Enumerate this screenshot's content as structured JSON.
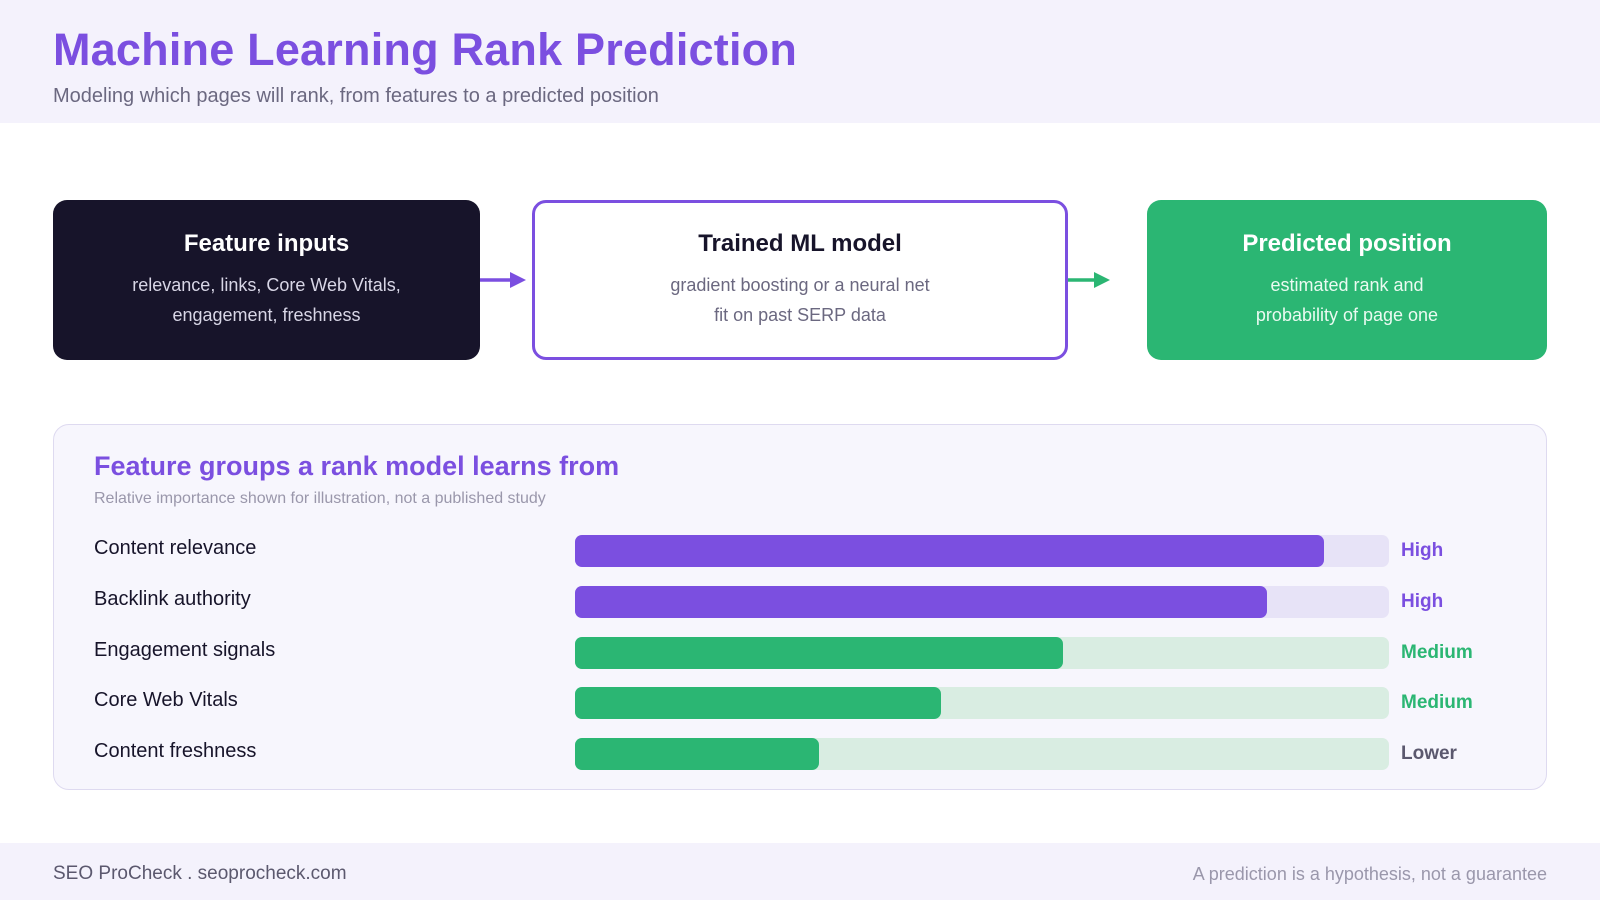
{
  "header": {
    "title": "Machine Learning Rank Prediction",
    "subtitle": "Modeling which pages will rank, from features to a predicted position"
  },
  "flow": {
    "inputs": {
      "title": "Feature inputs",
      "description": "relevance, links, Core Web Vitals, engagement, freshness"
    },
    "model": {
      "title": "Trained ML model",
      "description": "gradient boosting or a neural net fit on past SERP data"
    },
    "output": {
      "title": "Predicted position",
      "description": "estimated rank and probability of page one"
    }
  },
  "features_panel": {
    "title": "Feature groups a rank model learns from",
    "note": "Relative importance shown for illustration, not a published study",
    "rows": [
      {
        "label": "Content relevance",
        "level": "High",
        "importance": 0.92,
        "group": "high"
      },
      {
        "label": "Backlink authority",
        "level": "High",
        "importance": 0.85,
        "group": "high"
      },
      {
        "label": "Engagement signals",
        "level": "Medium",
        "importance": 0.6,
        "group": "medium"
      },
      {
        "label": "Core Web Vitals",
        "level": "Medium",
        "importance": 0.45,
        "group": "medium"
      },
      {
        "label": "Content freshness",
        "level": "Lower",
        "importance": 0.3,
        "group": "lower"
      }
    ]
  },
  "colors": {
    "accent_purple": "#7b4fe0",
    "accent_green": "#2bb673",
    "dark": "#17142a",
    "track_purple": "#e7e3f7",
    "track_green": "#d9ede2",
    "level_lower": "#5b586e"
  },
  "footer": {
    "brand": "SEO ProCheck . seoprocheck.com",
    "disclaimer": "A prediction is a hypothesis, not a guarantee"
  }
}
